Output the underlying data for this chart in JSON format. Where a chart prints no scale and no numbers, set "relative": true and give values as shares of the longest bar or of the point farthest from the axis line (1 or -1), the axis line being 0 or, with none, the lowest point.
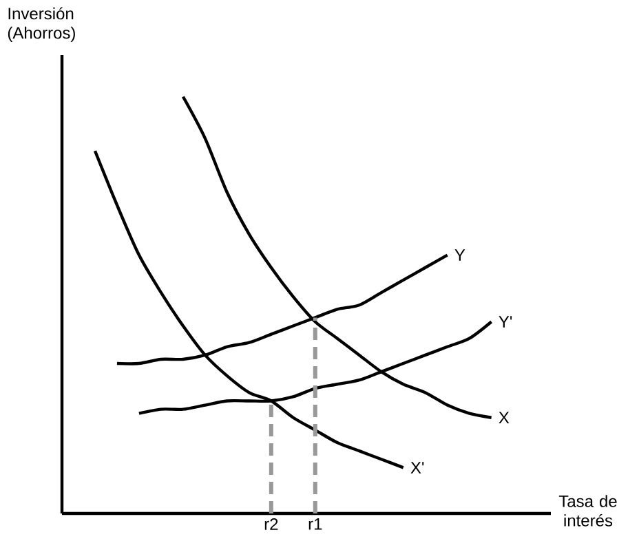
{
  "chart_data": {
    "type": "line",
    "relative": true,
    "xlabel": "Tasa de interés",
    "ylabel": "Inversión (Ahorros)",
    "categories": [
      null,
      null,
      null,
      null,
      null,
      null,
      null,
      null,
      null,
      "r2",
      null,
      "r1",
      null,
      null,
      null,
      null,
      null,
      null,
      null,
      null,
      null,
      null
    ],
    "series": [
      {
        "name": "X",
        "color": "#000000",
        "values": [
          null,
          null,
          null,
          null,
          null,
          1.0,
          0.9,
          0.77,
          0.67,
          0.59,
          0.52,
          0.46,
          0.42,
          0.38,
          0.34,
          0.31,
          0.29,
          0.26,
          0.24,
          0.23,
          null,
          null
        ]
      },
      {
        "name": "X'",
        "color": "#000000",
        "values": [
          null,
          0.87,
          0.74,
          0.62,
          0.53,
          0.45,
          0.38,
          0.33,
          0.29,
          0.27,
          0.23,
          0.2,
          0.17,
          0.15,
          0.13,
          0.11,
          null,
          null,
          null,
          null,
          null,
          null
        ]
      },
      {
        "name": "Y",
        "color": "#000000",
        "values": [
          null,
          null,
          0.36,
          0.36,
          0.37,
          0.37,
          0.38,
          0.4,
          0.41,
          0.43,
          0.45,
          0.47,
          0.49,
          0.5,
          0.53,
          0.56,
          0.59,
          0.62,
          null,
          null,
          null,
          null
        ]
      },
      {
        "name": "Y'",
        "color": "#000000",
        "values": [
          null,
          null,
          null,
          0.24,
          0.25,
          0.25,
          0.26,
          0.27,
          0.27,
          0.27,
          0.28,
          0.3,
          0.31,
          0.32,
          0.34,
          0.36,
          0.38,
          0.4,
          0.42,
          0.46,
          null,
          null
        ]
      },
      {
        "color": "#999999",
        "line_style": "dashed",
        "x": [
          "r2",
          "r2"
        ],
        "values": [
          0,
          0.27
        ]
      },
      {
        "color": "#999999",
        "line_style": "dashed",
        "x": [
          "r1",
          "r1"
        ],
        "values": [
          0,
          0.47
        ]
      }
    ],
    "marker": "none"
  }
}
